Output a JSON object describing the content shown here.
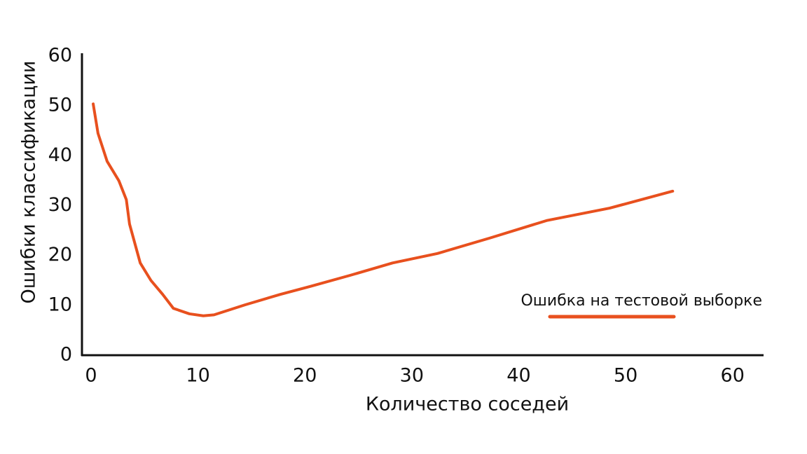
{
  "chart_data": {
    "type": "line",
    "x_label": "Количество соседей",
    "y_label": "Ошибки классификации",
    "xlim": [
      -0.85,
      62.9
    ],
    "xticks": [
      0,
      10,
      20,
      30,
      40,
      50,
      60
    ],
    "ylim": [
      0,
      60
    ],
    "yticks": [
      0,
      10,
      20,
      30,
      40,
      50,
      60
    ],
    "grid": false,
    "legend": "right",
    "series": [
      {
        "name": "Ошибка на тестовой выборке",
        "color": "#e8501e",
        "x": [
          0.2,
          0.65,
          1.5,
          2.6,
          3.3,
          3.6,
          4.6,
          5.6,
          6.7,
          7.7,
          9.2,
          10.5,
          11.5,
          14.4,
          17.7,
          20.5,
          24.2,
          28.2,
          32.4,
          37.3,
          42.6,
          48.5,
          54.4
        ],
        "values": [
          50.4,
          44.5,
          38.9,
          35,
          31.2,
          26.3,
          18.5,
          15,
          12.2,
          9.4,
          8.3,
          7.9,
          8.1,
          10.1,
          12.2,
          13.8,
          16,
          18.5,
          20.4,
          23.5,
          27,
          29.5,
          32.9
        ]
      }
    ]
  }
}
